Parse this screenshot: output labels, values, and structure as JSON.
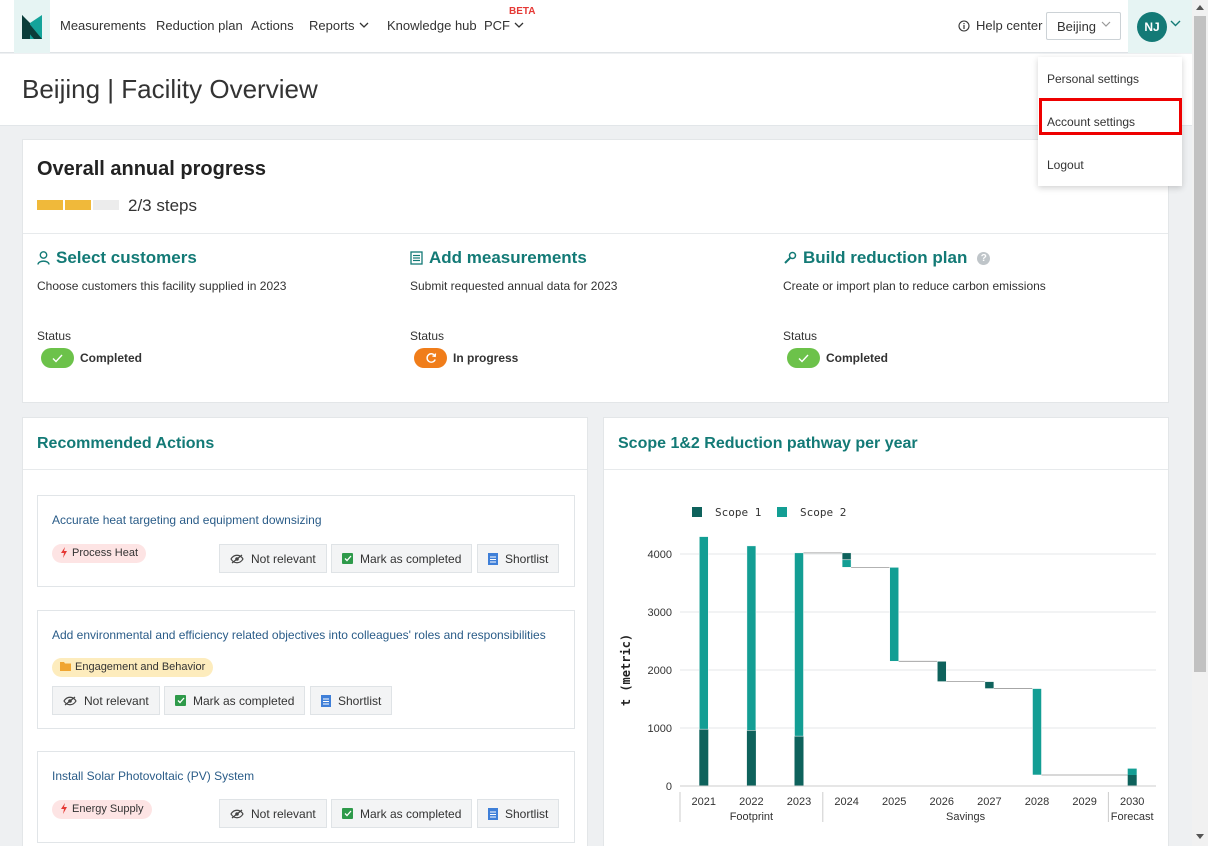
{
  "nav": {
    "items": [
      "Measurements",
      "Reduction plan",
      "Actions",
      "Reports",
      "Knowledge hub",
      "PCF"
    ],
    "beta": "BETA",
    "help": "Help center",
    "location": "Beijing",
    "avatar_initials": "NJ"
  },
  "page": {
    "title": "Beijing | Facility Overview"
  },
  "progress": {
    "title": "Overall annual progress",
    "steps_text": "2/3 steps",
    "steps_done": 2,
    "steps_total": 3,
    "status_label": "Status",
    "steps": [
      {
        "title": "Select customers",
        "icon": "user-icon",
        "desc": "Choose customers this facility supplied in 2023",
        "status": "Completed"
      },
      {
        "title": "Add measurements",
        "icon": "list-icon",
        "desc": "Submit requested annual data for 2023",
        "status": "In progress"
      },
      {
        "title": "Build reduction plan",
        "icon": "wrench-icon",
        "desc": "Create or import plan to reduce carbon emissions",
        "status": "Completed"
      }
    ]
  },
  "recommended": {
    "title": "Recommended Actions",
    "buttons": {
      "not_relevant": "Not relevant",
      "mark_completed": "Mark as completed",
      "shortlist": "Shortlist"
    },
    "actions": [
      {
        "title": "Accurate heat targeting and equipment downsizing",
        "tag": "Process Heat"
      },
      {
        "title": "Add environmental and efficiency related objectives into colleagues' roles and responsibilities",
        "tag": "Engagement and Behavior"
      },
      {
        "title": "Install Solar Photovoltaic (PV) System",
        "tag": "Energy Supply"
      }
    ]
  },
  "chart_data": {
    "type": "bar",
    "title": "Scope 1&2 Reduction pathway per year",
    "ylabel": "t (metric)",
    "ylim": [
      0,
      4400
    ],
    "yticks": [
      0,
      1000,
      2000,
      3000,
      4000
    ],
    "categories": [
      "2021",
      "2022",
      "2023",
      "2024",
      "2025",
      "2026",
      "2027",
      "2028",
      "2029",
      "2030"
    ],
    "groups": [
      {
        "label": "Footprint",
        "categories": [
          "2021",
          "2022",
          "2023"
        ]
      },
      {
        "label": "Savings",
        "categories": [
          "2024",
          "2025",
          "2026",
          "2027",
          "2028",
          "2029"
        ]
      },
      {
        "label": "Forecast",
        "categories": [
          "2030"
        ]
      }
    ],
    "series": [
      {
        "name": "Scope 1",
        "color": "#0e625c"
      },
      {
        "name": "Scope 2",
        "color": "#139e94"
      }
    ],
    "footprint": [
      {
        "year": "2021",
        "scope1": 980,
        "scope2": 3320
      },
      {
        "year": "2022",
        "scope1": 960,
        "scope2": 3180
      },
      {
        "year": "2023",
        "scope1": 860,
        "scope2": 3160
      }
    ],
    "savings": [
      {
        "year": "2024",
        "from": 4020,
        "to": 3900,
        "scope": "Scope 1"
      },
      {
        "year": "2024",
        "from": 3900,
        "to": 3770,
        "scope": "Scope 2"
      },
      {
        "year": "2025",
        "from": 3770,
        "to": 2150,
        "scope": "Scope 2"
      },
      {
        "year": "2026",
        "from": 2150,
        "to": 1800,
        "scope": "Scope 1"
      },
      {
        "year": "2027",
        "from": 1800,
        "to": 1680,
        "scope": "Scope 1"
      },
      {
        "year": "2028",
        "from": 1680,
        "to": 190,
        "scope": "Scope 2"
      }
    ],
    "forecast": {
      "year": "2030",
      "scope1": 190,
      "scope2": 110
    }
  },
  "menu": {
    "items": [
      "Personal settings",
      "Account settings",
      "Logout"
    ],
    "highlighted": "Account settings",
    "highlight_color": "#e00000"
  }
}
